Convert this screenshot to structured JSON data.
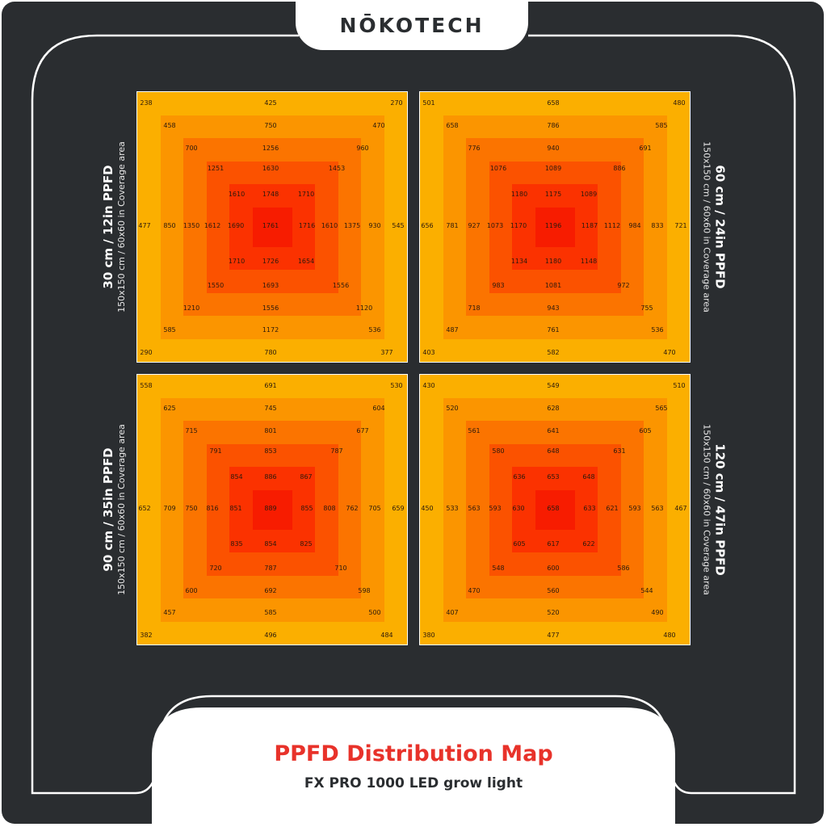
{
  "brand": {
    "logo_text": "NŌKOTECH"
  },
  "footer": {
    "title": "PPFD Distribution Map",
    "subtitle": "FX PRO 1000 LED grow light"
  },
  "ring_colors": [
    "#fbaf00",
    "#fb9500",
    "#fb7400",
    "#fb5200",
    "#fb3200",
    "#f71c00"
  ],
  "maps": [
    {
      "heading": "30 cm / 12in PPFD",
      "coverage": "150x150 cm / 60x60 in Coverage area",
      "label_side": "left",
      "values": [
        [
          "238",
          "425",
          "270"
        ],
        [
          "458",
          "750",
          "470"
        ],
        [
          "700",
          "1256",
          "960"
        ],
        [
          "1251",
          "1630",
          "1453"
        ],
        [
          "1610",
          "1748",
          "1710"
        ],
        [
          "477",
          "850",
          "1350",
          "1612",
          "1690",
          "1761",
          "1716",
          "1610",
          "1375",
          "930",
          "545"
        ],
        [
          "1710",
          "1726",
          "1654"
        ],
        [
          "1550",
          "1693",
          "1556"
        ],
        [
          "1210",
          "1556",
          "1120"
        ],
        [
          "585",
          "1172",
          "536"
        ],
        [
          "290",
          "780",
          "377"
        ]
      ]
    },
    {
      "heading": "60 cm / 24in PPFD",
      "coverage": "150x150 cm / 60x60 in Coverage area",
      "label_side": "right",
      "values": [
        [
          "501",
          "658",
          "480"
        ],
        [
          "658",
          "786",
          "585"
        ],
        [
          "776",
          "940",
          "691"
        ],
        [
          "1076",
          "1089",
          "886"
        ],
        [
          "1180",
          "1175",
          "1089"
        ],
        [
          "656",
          "781",
          "927",
          "1073",
          "1170",
          "1196",
          "1187",
          "1112",
          "984",
          "833",
          "721"
        ],
        [
          "1134",
          "1180",
          "1148"
        ],
        [
          "983",
          "1081",
          "972"
        ],
        [
          "718",
          "943",
          "755"
        ],
        [
          "487",
          "761",
          "536"
        ],
        [
          "403",
          "582",
          "470"
        ]
      ]
    },
    {
      "heading": "90 cm / 35in PPFD",
      "coverage": "150x150 cm / 60x60 in Coverage area",
      "label_side": "left",
      "values": [
        [
          "558",
          "691",
          "530"
        ],
        [
          "625",
          "745",
          "604"
        ],
        [
          "715",
          "801",
          "677"
        ],
        [
          "791",
          "853",
          "787"
        ],
        [
          "854",
          "886",
          "867"
        ],
        [
          "652",
          "709",
          "750",
          "816",
          "851",
          "889",
          "855",
          "808",
          "762",
          "705",
          "659"
        ],
        [
          "835",
          "854",
          "825"
        ],
        [
          "720",
          "787",
          "710"
        ],
        [
          "600",
          "692",
          "598"
        ],
        [
          "457",
          "585",
          "500"
        ],
        [
          "382",
          "496",
          "484"
        ]
      ]
    },
    {
      "heading": "120 cm / 47in PPFD",
      "coverage": "150x150 cm / 60x60 in Coverage area",
      "label_side": "right",
      "values": [
        [
          "430",
          "549",
          "510"
        ],
        [
          "520",
          "628",
          "565"
        ],
        [
          "561",
          "641",
          "605"
        ],
        [
          "580",
          "648",
          "631"
        ],
        [
          "636",
          "653",
          "648"
        ],
        [
          "450",
          "533",
          "563",
          "593",
          "630",
          "658",
          "633",
          "621",
          "593",
          "563",
          "467"
        ],
        [
          "605",
          "617",
          "622"
        ],
        [
          "548",
          "600",
          "586"
        ],
        [
          "470",
          "560",
          "544"
        ],
        [
          "407",
          "520",
          "490"
        ],
        [
          "380",
          "477",
          "480"
        ]
      ]
    }
  ]
}
